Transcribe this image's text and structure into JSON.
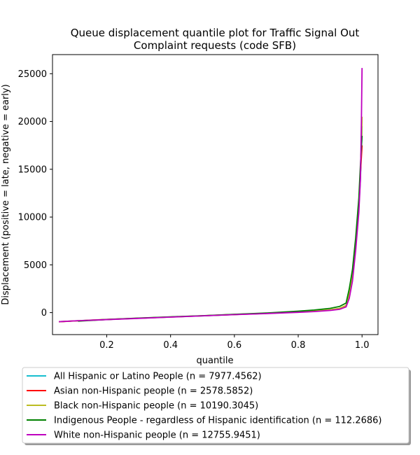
{
  "chart_data": {
    "type": "line",
    "title_line1": "Queue displacement quantile plot for Traffic Signal Out",
    "title_line2": "Complaint  requests (code SFB)",
    "xlabel": "quantile",
    "ylabel": "Displacement (positive = late, negative = early)",
    "xlim": [
      0.03,
      1.05
    ],
    "ylim": [
      -2300,
      27000
    ],
    "xticks": [
      0.2,
      0.4,
      0.6,
      0.8,
      1.0
    ],
    "xtick_labels": [
      "0.2",
      "0.4",
      "0.6",
      "0.8",
      "1.0"
    ],
    "yticks": [
      0,
      5000,
      10000,
      15000,
      20000,
      25000
    ],
    "ytick_labels": [
      "0",
      "5000",
      "10000",
      "15000",
      "20000",
      "25000"
    ],
    "grid": false,
    "legend_position": "below-plot",
    "series": [
      {
        "name": "All Hispanic or Latino People (n = 7977.4562)",
        "color": "#17becf",
        "x": [
          0.05,
          0.1,
          0.2,
          0.3,
          0.4,
          0.5,
          0.6,
          0.7,
          0.8,
          0.85,
          0.9,
          0.93,
          0.95,
          0.96,
          0.97,
          0.98,
          0.99,
          0.995,
          0.999,
          1.0
        ],
        "y": [
          -950,
          -860,
          -720,
          -590,
          -460,
          -340,
          -200,
          -80,
          60,
          140,
          280,
          420,
          700,
          1800,
          3800,
          7000,
          11000,
          14000,
          18000,
          19500
        ]
      },
      {
        "name": "Asian non-Hispanic people (n = 2578.5852)",
        "color": "#ff0000",
        "x": [
          0.05,
          0.1,
          0.2,
          0.3,
          0.4,
          0.5,
          0.6,
          0.7,
          0.8,
          0.85,
          0.9,
          0.93,
          0.95,
          0.96,
          0.97,
          0.98,
          0.99,
          0.995,
          1.0
        ],
        "y": [
          -960,
          -870,
          -720,
          -590,
          -460,
          -330,
          -200,
          -80,
          70,
          150,
          290,
          430,
          720,
          1900,
          3900,
          7200,
          11200,
          14500,
          17500
        ]
      },
      {
        "name": "Black non-Hispanic people (n = 10190.3045)",
        "color": "#bcbd22",
        "x": [
          0.05,
          0.1,
          0.2,
          0.3,
          0.4,
          0.5,
          0.6,
          0.7,
          0.8,
          0.85,
          0.9,
          0.93,
          0.95,
          0.96,
          0.97,
          0.98,
          0.99,
          0.995,
          0.999,
          1.0
        ],
        "y": [
          -950,
          -860,
          -710,
          -580,
          -450,
          -330,
          -190,
          -70,
          80,
          160,
          300,
          450,
          750,
          2000,
          4000,
          7300,
          11300,
          14800,
          18500,
          20500
        ]
      },
      {
        "name": "Indigenous People - regardless of Hispanic identification (n = 112.2686)",
        "color": "#008000",
        "x": [
          0.11,
          0.2,
          0.3,
          0.4,
          0.5,
          0.6,
          0.7,
          0.8,
          0.85,
          0.9,
          0.93,
          0.95,
          0.96,
          0.97,
          0.98,
          0.99,
          0.995,
          1.0
        ],
        "y": [
          -900,
          -720,
          -570,
          -440,
          -320,
          -180,
          -40,
          150,
          270,
          450,
          650,
          1000,
          2500,
          4500,
          7800,
          12000,
          15500,
          18500
        ]
      },
      {
        "name": "White non-Hispanic people (n = 12755.9451)",
        "color": "#bf00bf",
        "x": [
          0.05,
          0.1,
          0.2,
          0.3,
          0.4,
          0.5,
          0.6,
          0.7,
          0.8,
          0.85,
          0.9,
          0.93,
          0.95,
          0.96,
          0.97,
          0.98,
          0.99,
          0.995,
          0.998,
          1.0
        ],
        "y": [
          -950,
          -860,
          -730,
          -600,
          -470,
          -340,
          -210,
          -100,
          30,
          110,
          230,
          350,
          600,
          1500,
          3300,
          6500,
          10500,
          14000,
          20000,
          25600
        ]
      }
    ]
  }
}
